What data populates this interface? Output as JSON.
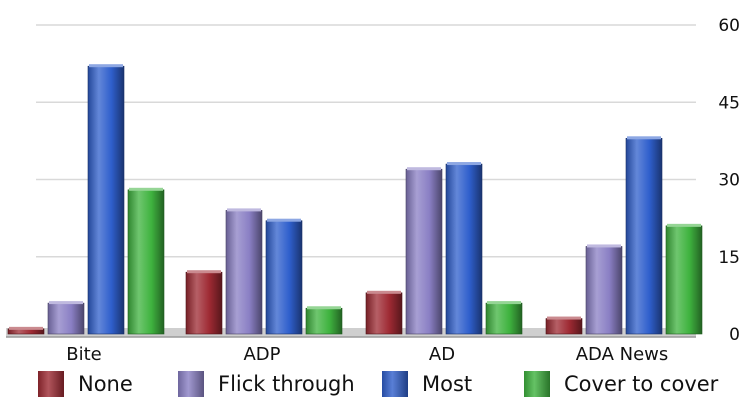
{
  "chart_data": {
    "type": "bar",
    "categories": [
      "Bite",
      "ADP",
      "AD",
      "ADA News"
    ],
    "series": [
      {
        "name": "None",
        "color": "#9e2a33",
        "values": [
          1,
          12,
          8,
          3
        ]
      },
      {
        "name": "Flick through",
        "color": "#8a7fc4",
        "values": [
          6,
          24,
          32,
          17
        ]
      },
      {
        "name": "Most",
        "color": "#2f5fcc",
        "values": [
          52,
          22,
          33,
          38
        ]
      },
      {
        "name": "Cover to cover",
        "color": "#3fb33f",
        "values": [
          28,
          5,
          6,
          21
        ]
      }
    ],
    "y_ticks": [
      "0",
      "15",
      "30",
      "45",
      "60"
    ],
    "ylim": [
      0,
      60
    ],
    "axis_position": "right",
    "grid": true,
    "legend_position": "bottom"
  }
}
